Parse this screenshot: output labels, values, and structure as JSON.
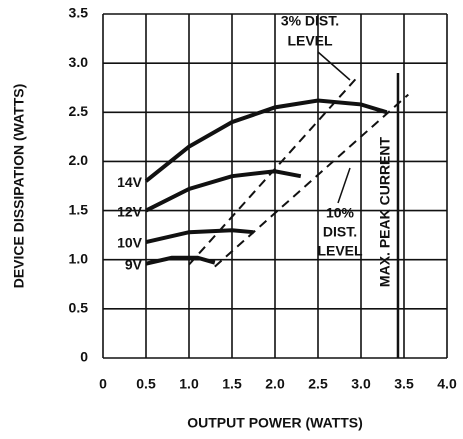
{
  "chart_data": {
    "type": "line",
    "x_label": "OUTPUT POWER (WATTS)",
    "y_label": "DEVICE DISSIPATION (WATTS)",
    "xlim": [
      0,
      4
    ],
    "ylim": [
      0,
      3.5
    ],
    "xticks": [
      0,
      0.5,
      {
        "value": 1,
        "label": "1.0"
      },
      1.5,
      {
        "value": 2,
        "label": "2.0"
      },
      2.5,
      {
        "value": 3,
        "label": "3.0"
      },
      3.5,
      {
        "value": 4,
        "label": "4.0"
      }
    ],
    "yticks": [
      0,
      0.5,
      {
        "value": 1,
        "label": "1.0"
      },
      1.5,
      {
        "value": 2,
        "label": "2.0"
      },
      2.5,
      {
        "value": 3,
        "label": "3.0"
      },
      3.5
    ],
    "grid": true,
    "series": [
      {
        "name": "14V",
        "color": "#111111",
        "x": [
          0.5,
          1.0,
          1.5,
          2.0,
          2.5,
          3.0,
          3.3
        ],
        "values": [
          1.8,
          2.15,
          2.4,
          2.55,
          2.62,
          2.58,
          2.5
        ]
      },
      {
        "name": "12V",
        "color": "#111111",
        "x": [
          0.5,
          1.0,
          1.5,
          2.0,
          2.3
        ],
        "values": [
          1.5,
          1.72,
          1.85,
          1.9,
          1.85
        ]
      },
      {
        "name": "10V",
        "color": "#111111",
        "x": [
          0.5,
          1.0,
          1.5,
          1.75
        ],
        "values": [
          1.18,
          1.28,
          1.3,
          1.28
        ]
      },
      {
        "name": "9V",
        "color": "#111111",
        "x": [
          0.5,
          0.8,
          1.1,
          1.3
        ],
        "values": [
          0.96,
          1.02,
          1.02,
          0.97
        ]
      },
      {
        "color": "#111111",
        "dashed": true,
        "x": [
          1.0,
          2.95
        ],
        "values": [
          0.95,
          2.85
        ]
      },
      {
        "color": "#111111",
        "dashed": true,
        "x": [
          1.3,
          3.55
        ],
        "values": [
          0.93,
          2.68
        ]
      },
      {
        "color": "#111111",
        "x": [
          3.43,
          3.43
        ],
        "values": [
          0,
          2.9
        ]
      }
    ],
    "annotations": [
      "3% DIST.",
      "LEVEL",
      "10%",
      "DIST.",
      "LEVEL",
      "MAX. PEAK CURRENT"
    ]
  }
}
